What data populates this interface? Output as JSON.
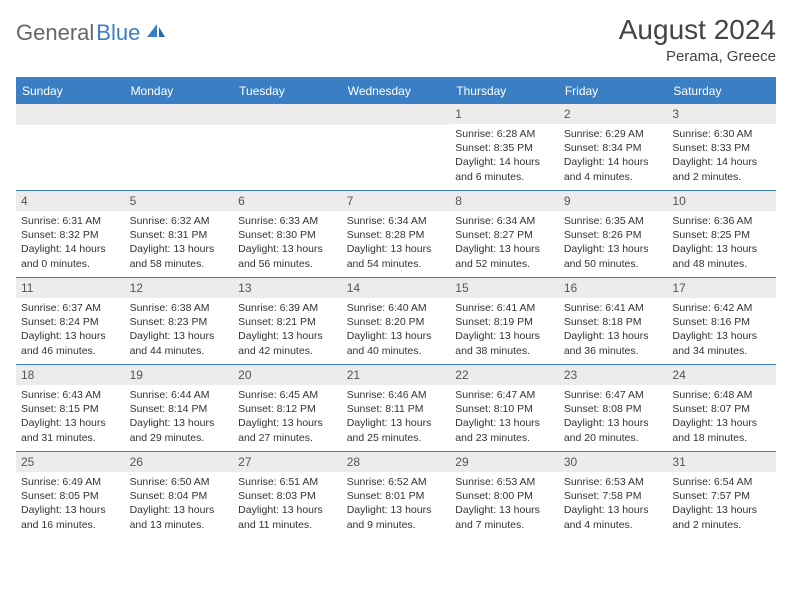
{
  "logo": {
    "general": "General",
    "blue": "Blue"
  },
  "title": "August 2024",
  "location": "Perama, Greece",
  "colors": {
    "accent": "#3a7fc4",
    "header_bg": "#ececec",
    "text": "#333333",
    "logo_gray": "#666666"
  },
  "weekdays": [
    "Sunday",
    "Monday",
    "Tuesday",
    "Wednesday",
    "Thursday",
    "Friday",
    "Saturday"
  ],
  "weeks": [
    [
      {
        "blank": true
      },
      {
        "blank": true
      },
      {
        "blank": true
      },
      {
        "blank": true
      },
      {
        "day": "1",
        "sunrise": "Sunrise: 6:28 AM",
        "sunset": "Sunset: 8:35 PM",
        "daylight1": "Daylight: 14 hours",
        "daylight2": "and 6 minutes."
      },
      {
        "day": "2",
        "sunrise": "Sunrise: 6:29 AM",
        "sunset": "Sunset: 8:34 PM",
        "daylight1": "Daylight: 14 hours",
        "daylight2": "and 4 minutes."
      },
      {
        "day": "3",
        "sunrise": "Sunrise: 6:30 AM",
        "sunset": "Sunset: 8:33 PM",
        "daylight1": "Daylight: 14 hours",
        "daylight2": "and 2 minutes."
      }
    ],
    [
      {
        "day": "4",
        "sunrise": "Sunrise: 6:31 AM",
        "sunset": "Sunset: 8:32 PM",
        "daylight1": "Daylight: 14 hours",
        "daylight2": "and 0 minutes."
      },
      {
        "day": "5",
        "sunrise": "Sunrise: 6:32 AM",
        "sunset": "Sunset: 8:31 PM",
        "daylight1": "Daylight: 13 hours",
        "daylight2": "and 58 minutes."
      },
      {
        "day": "6",
        "sunrise": "Sunrise: 6:33 AM",
        "sunset": "Sunset: 8:30 PM",
        "daylight1": "Daylight: 13 hours",
        "daylight2": "and 56 minutes."
      },
      {
        "day": "7",
        "sunrise": "Sunrise: 6:34 AM",
        "sunset": "Sunset: 8:28 PM",
        "daylight1": "Daylight: 13 hours",
        "daylight2": "and 54 minutes."
      },
      {
        "day": "8",
        "sunrise": "Sunrise: 6:34 AM",
        "sunset": "Sunset: 8:27 PM",
        "daylight1": "Daylight: 13 hours",
        "daylight2": "and 52 minutes."
      },
      {
        "day": "9",
        "sunrise": "Sunrise: 6:35 AM",
        "sunset": "Sunset: 8:26 PM",
        "daylight1": "Daylight: 13 hours",
        "daylight2": "and 50 minutes."
      },
      {
        "day": "10",
        "sunrise": "Sunrise: 6:36 AM",
        "sunset": "Sunset: 8:25 PM",
        "daylight1": "Daylight: 13 hours",
        "daylight2": "and 48 minutes."
      }
    ],
    [
      {
        "day": "11",
        "sunrise": "Sunrise: 6:37 AM",
        "sunset": "Sunset: 8:24 PM",
        "daylight1": "Daylight: 13 hours",
        "daylight2": "and 46 minutes."
      },
      {
        "day": "12",
        "sunrise": "Sunrise: 6:38 AM",
        "sunset": "Sunset: 8:23 PM",
        "daylight1": "Daylight: 13 hours",
        "daylight2": "and 44 minutes."
      },
      {
        "day": "13",
        "sunrise": "Sunrise: 6:39 AM",
        "sunset": "Sunset: 8:21 PM",
        "daylight1": "Daylight: 13 hours",
        "daylight2": "and 42 minutes."
      },
      {
        "day": "14",
        "sunrise": "Sunrise: 6:40 AM",
        "sunset": "Sunset: 8:20 PM",
        "daylight1": "Daylight: 13 hours",
        "daylight2": "and 40 minutes."
      },
      {
        "day": "15",
        "sunrise": "Sunrise: 6:41 AM",
        "sunset": "Sunset: 8:19 PM",
        "daylight1": "Daylight: 13 hours",
        "daylight2": "and 38 minutes."
      },
      {
        "day": "16",
        "sunrise": "Sunrise: 6:41 AM",
        "sunset": "Sunset: 8:18 PM",
        "daylight1": "Daylight: 13 hours",
        "daylight2": "and 36 minutes."
      },
      {
        "day": "17",
        "sunrise": "Sunrise: 6:42 AM",
        "sunset": "Sunset: 8:16 PM",
        "daylight1": "Daylight: 13 hours",
        "daylight2": "and 34 minutes."
      }
    ],
    [
      {
        "day": "18",
        "sunrise": "Sunrise: 6:43 AM",
        "sunset": "Sunset: 8:15 PM",
        "daylight1": "Daylight: 13 hours",
        "daylight2": "and 31 minutes."
      },
      {
        "day": "19",
        "sunrise": "Sunrise: 6:44 AM",
        "sunset": "Sunset: 8:14 PM",
        "daylight1": "Daylight: 13 hours",
        "daylight2": "and 29 minutes."
      },
      {
        "day": "20",
        "sunrise": "Sunrise: 6:45 AM",
        "sunset": "Sunset: 8:12 PM",
        "daylight1": "Daylight: 13 hours",
        "daylight2": "and 27 minutes."
      },
      {
        "day": "21",
        "sunrise": "Sunrise: 6:46 AM",
        "sunset": "Sunset: 8:11 PM",
        "daylight1": "Daylight: 13 hours",
        "daylight2": "and 25 minutes."
      },
      {
        "day": "22",
        "sunrise": "Sunrise: 6:47 AM",
        "sunset": "Sunset: 8:10 PM",
        "daylight1": "Daylight: 13 hours",
        "daylight2": "and 23 minutes."
      },
      {
        "day": "23",
        "sunrise": "Sunrise: 6:47 AM",
        "sunset": "Sunset: 8:08 PM",
        "daylight1": "Daylight: 13 hours",
        "daylight2": "and 20 minutes."
      },
      {
        "day": "24",
        "sunrise": "Sunrise: 6:48 AM",
        "sunset": "Sunset: 8:07 PM",
        "daylight1": "Daylight: 13 hours",
        "daylight2": "and 18 minutes."
      }
    ],
    [
      {
        "day": "25",
        "sunrise": "Sunrise: 6:49 AM",
        "sunset": "Sunset: 8:05 PM",
        "daylight1": "Daylight: 13 hours",
        "daylight2": "and 16 minutes."
      },
      {
        "day": "26",
        "sunrise": "Sunrise: 6:50 AM",
        "sunset": "Sunset: 8:04 PM",
        "daylight1": "Daylight: 13 hours",
        "daylight2": "and 13 minutes."
      },
      {
        "day": "27",
        "sunrise": "Sunrise: 6:51 AM",
        "sunset": "Sunset: 8:03 PM",
        "daylight1": "Daylight: 13 hours",
        "daylight2": "and 11 minutes."
      },
      {
        "day": "28",
        "sunrise": "Sunrise: 6:52 AM",
        "sunset": "Sunset: 8:01 PM",
        "daylight1": "Daylight: 13 hours",
        "daylight2": "and 9 minutes."
      },
      {
        "day": "29",
        "sunrise": "Sunrise: 6:53 AM",
        "sunset": "Sunset: 8:00 PM",
        "daylight1": "Daylight: 13 hours",
        "daylight2": "and 7 minutes."
      },
      {
        "day": "30",
        "sunrise": "Sunrise: 6:53 AM",
        "sunset": "Sunset: 7:58 PM",
        "daylight1": "Daylight: 13 hours",
        "daylight2": "and 4 minutes."
      },
      {
        "day": "31",
        "sunrise": "Sunrise: 6:54 AM",
        "sunset": "Sunset: 7:57 PM",
        "daylight1": "Daylight: 13 hours",
        "daylight2": "and 2 minutes."
      }
    ]
  ]
}
